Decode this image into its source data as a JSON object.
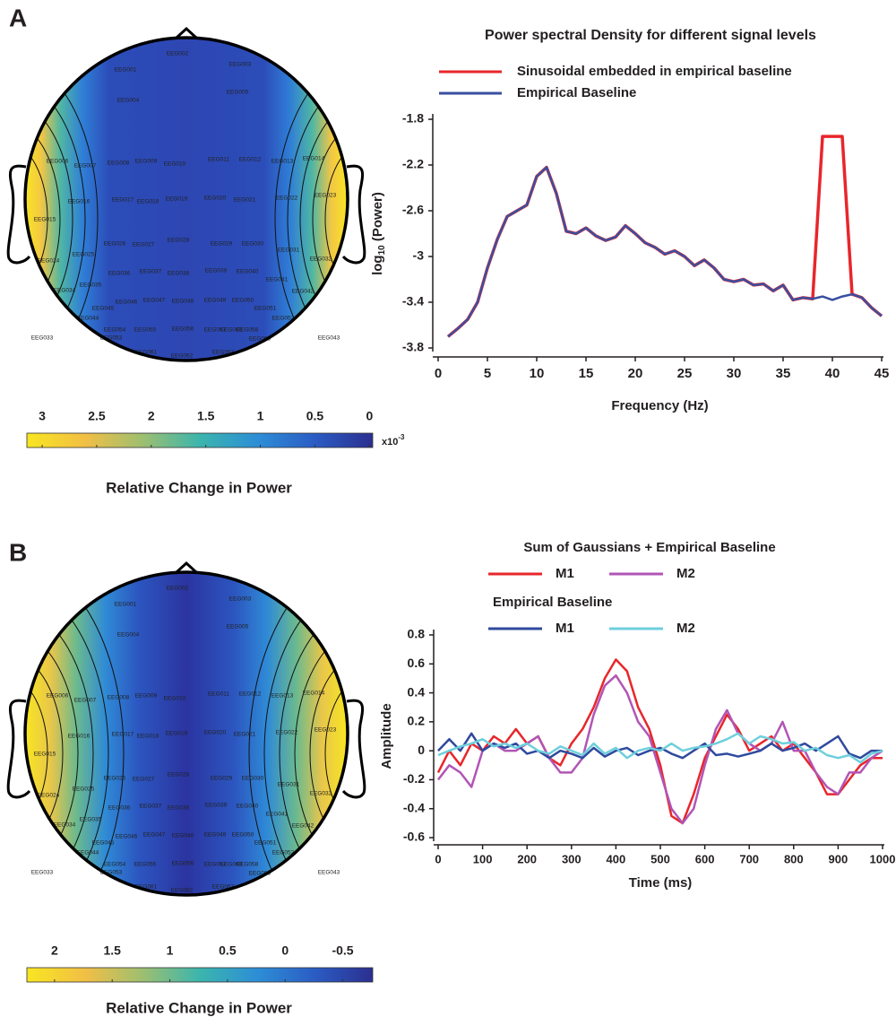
{
  "panels": [
    {
      "label": "A",
      "colorbar": {
        "lim": [
          3.14,
          -0.03
        ],
        "ticks": [
          3,
          2.5,
          2,
          1.5,
          1,
          0.5,
          0
        ],
        "multiplier": {
          "base": "x10",
          "exponent": "-3"
        },
        "colormap": [
          "#f8e621",
          "#f2bf45",
          "#9ebf70",
          "#3bb5ad",
          "#2d8ed6",
          "#2b5cc4",
          "#2b2f8f"
        ]
      },
      "caption": "Relative Change in Power"
    },
    {
      "label": "B",
      "colorbar": {
        "lim": [
          2.24,
          -0.76
        ],
        "ticks": [
          2,
          1.5,
          1,
          0.5,
          0,
          -0.5
        ],
        "colormap": [
          "#f8e621",
          "#f2bf45",
          "#9ebf70",
          "#3bb5ad",
          "#2d8ed6",
          "#2b5cc4",
          "#2b2f8f"
        ]
      },
      "caption": "Relative Change in Power"
    }
  ],
  "electrodes": [
    "EEG001",
    "EEG002",
    "EEG003",
    "EEG004",
    "EEG005",
    "EEG006",
    "EEG007",
    "EEG008",
    "EEG009",
    "EEG010",
    "EEG011",
    "EEG012",
    "EEG013",
    "EEG014",
    "EEG015",
    "EEG016",
    "EEG017",
    "EEG018",
    "EEG019",
    "EEG020",
    "EEG021",
    "EEG022",
    "EEG023",
    "EEG024",
    "EEG025",
    "EEG026",
    "EEG027",
    "EEG028",
    "EEG029",
    "EEG030",
    "EEG031",
    "EEG032",
    "EEG033",
    "EEG034",
    "EEG035",
    "EEG036",
    "EEG037",
    "EEG038",
    "EEG039",
    "EEG040",
    "EEG041",
    "EEG042",
    "EEG043",
    "EEG044",
    "EEG045",
    "EEG046",
    "EEG047",
    "EEG048",
    "EEG049",
    "EEG050",
    "EEG051",
    "EEG052",
    "EEG053",
    "EEG054",
    "EEG055",
    "EEG056",
    "EEG057",
    "EEG058",
    "EEG059",
    "EEG060",
    "EEG061",
    "EEG062",
    "EEG063"
  ],
  "chart_data": [
    {
      "type": "line",
      "title": "Power spectral Density for different signal levels",
      "x": [
        1,
        2,
        3,
        4,
        5,
        6,
        7,
        8,
        9,
        10,
        11,
        12,
        13,
        14,
        15,
        16,
        17,
        18,
        19,
        20,
        21,
        22,
        23,
        24,
        25,
        26,
        27,
        28,
        29,
        30,
        31,
        32,
        33,
        34,
        35,
        36,
        37,
        38,
        39,
        40,
        41,
        42,
        43,
        44,
        45
      ],
      "series": [
        {
          "name": "Sinusoidal embedded in empirical baseline",
          "color": "#e8262b",
          "values": [
            -3.7,
            -3.63,
            -3.55,
            -3.4,
            -3.1,
            -2.85,
            -2.65,
            -2.6,
            -2.55,
            -2.3,
            -2.22,
            -2.45,
            -2.78,
            -2.8,
            -2.75,
            -2.82,
            -2.86,
            -2.83,
            -2.73,
            -2.8,
            -2.88,
            -2.92,
            -2.98,
            -2.95,
            -3.0,
            -3.08,
            -3.03,
            -3.1,
            -3.2,
            -3.22,
            -3.2,
            -3.25,
            -3.24,
            -3.3,
            -3.25,
            -3.38,
            -3.36,
            -3.37,
            -1.95,
            -1.95,
            -1.95,
            -3.33,
            -3.36,
            -3.45,
            -3.52
          ]
        },
        {
          "name": "Empirical Baseline",
          "color": "#3a4fa0",
          "values": [
            -3.7,
            -3.63,
            -3.55,
            -3.4,
            -3.1,
            -2.85,
            -2.65,
            -2.6,
            -2.55,
            -2.3,
            -2.22,
            -2.45,
            -2.78,
            -2.8,
            -2.75,
            -2.82,
            -2.86,
            -2.83,
            -2.73,
            -2.8,
            -2.88,
            -2.92,
            -2.98,
            -2.95,
            -3.0,
            -3.08,
            -3.03,
            -3.1,
            -3.2,
            -3.22,
            -3.2,
            -3.25,
            -3.24,
            -3.3,
            -3.25,
            -3.38,
            -3.36,
            -3.37,
            -3.35,
            -3.38,
            -3.35,
            -3.33,
            -3.36,
            -3.45,
            -3.52
          ]
        }
      ],
      "xlabel": "Frequency (Hz)",
      "ylabel": {
        "base": "log",
        "sub": "10",
        "rest": " (Power)"
      },
      "xlim": [
        0,
        45
      ],
      "xticks": [
        0,
        5,
        10,
        15,
        20,
        25,
        30,
        35,
        40,
        45
      ],
      "ylim": [
        -3.8,
        -1.8
      ],
      "yticks": [
        -3.8,
        -3.4,
        -3,
        -2.6,
        -2.2,
        -1.8
      ]
    },
    {
      "type": "line",
      "x": [
        0,
        25,
        50,
        75,
        100,
        125,
        150,
        175,
        200,
        225,
        250,
        275,
        300,
        325,
        350,
        375,
        400,
        425,
        450,
        475,
        500,
        525,
        550,
        575,
        600,
        625,
        650,
        675,
        700,
        725,
        750,
        775,
        800,
        825,
        850,
        875,
        900,
        925,
        950,
        975,
        1000
      ],
      "groups": [
        {
          "title": "Sum of Gaussians + Empirical Baseline",
          "series": [
            {
              "name": "M1",
              "color": "#e8262b",
              "values": [
                -0.15,
                0.0,
                -0.1,
                0.05,
                0.0,
                0.1,
                0.05,
                0.15,
                0.05,
                0.1,
                -0.05,
                -0.1,
                0.05,
                0.15,
                0.3,
                0.5,
                0.63,
                0.55,
                0.3,
                0.15,
                -0.1,
                -0.45,
                -0.5,
                -0.3,
                -0.05,
                0.1,
                0.25,
                0.15,
                0.0,
                0.05,
                0.1,
                0.0,
                0.05,
                -0.05,
                -0.15,
                -0.3,
                -0.3,
                -0.2,
                -0.1,
                -0.05,
                -0.05
              ]
            },
            {
              "name": "M2",
              "color": "#b155b5",
              "values": [
                -0.2,
                -0.1,
                -0.15,
                -0.25,
                0.0,
                0.05,
                0.0,
                0.0,
                0.05,
                0.1,
                -0.05,
                -0.15,
                -0.15,
                -0.05,
                0.25,
                0.45,
                0.52,
                0.4,
                0.2,
                0.1,
                -0.15,
                -0.4,
                -0.5,
                -0.4,
                -0.1,
                0.15,
                0.28,
                0.12,
                0.05,
                0.0,
                0.05,
                0.2,
                0.0,
                0.0,
                -0.15,
                -0.25,
                -0.3,
                -0.15,
                -0.15,
                -0.05,
                0.0
              ]
            }
          ]
        },
        {
          "title": "Empirical Baseline",
          "series": [
            {
              "name": "M1",
              "color": "#2f4a9e",
              "values": [
                0.0,
                0.08,
                0.0,
                0.12,
                0.0,
                0.05,
                0.02,
                0.05,
                -0.02,
                0.0,
                -0.05,
                0.0,
                -0.02,
                -0.05,
                0.02,
                -0.04,
                0.0,
                0.02,
                -0.03,
                0.0,
                0.02,
                -0.02,
                -0.05,
                0.0,
                0.05,
                -0.03,
                -0.02,
                -0.04,
                -0.02,
                0.0,
                0.05,
                0.0,
                0.02,
                0.05,
                0.0,
                0.05,
                0.1,
                -0.02,
                -0.05,
                0.0,
                0.0
              ]
            },
            {
              "name": "M2",
              "color": "#6fcfdc",
              "values": [
                -0.03,
                0.0,
                0.03,
                0.05,
                0.08,
                0.03,
                0.05,
                0.02,
                0.05,
                0.0,
                -0.02,
                0.03,
                0.0,
                -0.03,
                0.05,
                -0.02,
                0.02,
                -0.05,
                0.0,
                0.02,
                0.0,
                0.05,
                0.0,
                0.02,
                0.03,
                0.05,
                0.08,
                0.12,
                0.05,
                0.1,
                0.08,
                0.05,
                0.06,
                0.0,
                0.02,
                -0.03,
                -0.05,
                -0.03,
                -0.08,
                -0.02,
                0.0
              ]
            }
          ]
        }
      ],
      "xlabel": "Time (ms)",
      "ylabel": "Amplitude",
      "xlim": [
        0,
        1000
      ],
      "xticks": [
        0,
        100,
        200,
        300,
        400,
        500,
        600,
        700,
        800,
        900,
        1000
      ],
      "ylim": [
        -0.6,
        0.8
      ],
      "yticks": [
        -0.6,
        -0.4,
        -0.2,
        0,
        0.2,
        0.4,
        0.6,
        0.8
      ]
    }
  ]
}
